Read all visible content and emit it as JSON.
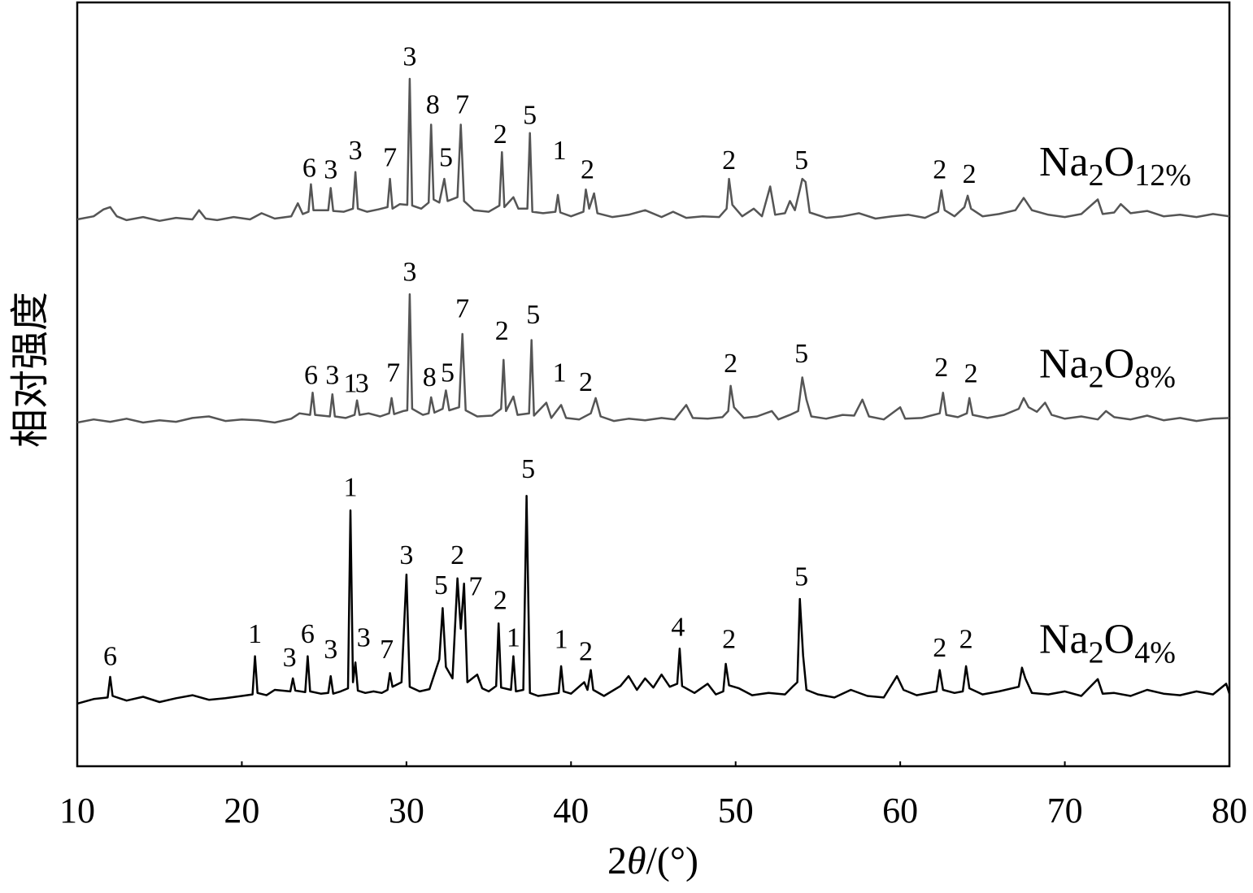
{
  "chart_data": {
    "type": "line",
    "xlabel": "2θ/(°)",
    "ylabel": "相对强度",
    "xlim": [
      10,
      80
    ],
    "xticks": [
      10,
      20,
      30,
      40,
      50,
      60,
      70,
      80
    ],
    "ylim": [
      0,
      100
    ],
    "series": [
      {
        "name": "Na2O12%",
        "color": "#555555",
        "x": [
          10,
          11,
          11.6,
          12,
          12.4,
          13,
          14,
          15,
          16,
          17,
          17.4,
          17.8,
          18.5,
          19.5,
          20.5,
          21.2,
          22,
          23,
          23.4,
          23.7,
          24.05,
          24.2,
          24.35,
          25.25,
          25.4,
          25.55,
          26.2,
          26.75,
          26.9,
          27.05,
          27.6,
          28.3,
          28.85,
          29.0,
          29.15,
          29.6,
          30.05,
          30.2,
          30.35,
          30.9,
          31.35,
          31.5,
          31.65,
          32.0,
          32.3,
          32.5,
          33.1,
          33.3,
          33.5,
          34.1,
          35.0,
          35.65,
          35.8,
          35.95,
          36.5,
          36.8,
          37.35,
          37.5,
          37.65,
          38.3,
          39.05,
          39.2,
          39.35,
          40.0,
          40.75,
          40.9,
          41.1,
          41.4,
          41.6,
          42.5,
          43.5,
          44.5,
          45.5,
          46.2,
          47,
          48,
          49,
          49.45,
          49.6,
          49.8,
          50.4,
          51.1,
          51.6,
          52.1,
          52.4,
          53.0,
          53.3,
          53.6,
          53.9,
          54.05,
          54.25,
          54.5,
          55.5,
          56.5,
          57.5,
          58.5,
          59.5,
          60.5,
          61.5,
          62.3,
          62.5,
          62.7,
          63.3,
          63.9,
          64.1,
          64.3,
          65,
          66,
          67,
          67.5,
          68,
          69,
          70,
          71,
          72,
          72.3,
          73,
          73.4,
          74,
          75,
          76,
          77,
          78,
          79,
          80
        ],
        "values": [
          71.6,
          72.0,
          72.9,
          73.2,
          72.0,
          71.5,
          71.9,
          71.4,
          71.8,
          71.6,
          72.8,
          71.7,
          71.5,
          71.9,
          71.6,
          72.4,
          71.7,
          72.0,
          73.7,
          72.3,
          72.6,
          76.2,
          72.8,
          72.8,
          75.7,
          72.7,
          72.6,
          73.0,
          77.8,
          73.0,
          72.6,
          72.9,
          73.2,
          76.9,
          73.0,
          73.6,
          73.5,
          90.0,
          73.4,
          73.0,
          73.8,
          84.0,
          74.2,
          73.8,
          76.9,
          74.0,
          74.5,
          84.0,
          74.0,
          72.8,
          72.6,
          73.4,
          80.4,
          73.2,
          74.5,
          73.0,
          73.0,
          82.9,
          72.6,
          72.4,
          72.6,
          74.8,
          72.5,
          72.0,
          72.6,
          75.5,
          73.0,
          75.0,
          72.4,
          71.9,
          72.2,
          72.8,
          71.9,
          72.6,
          71.8,
          72.0,
          71.9,
          73.0,
          76.9,
          73.5,
          72.0,
          73.0,
          72.0,
          75.9,
          72.2,
          72.4,
          74.0,
          72.8,
          75.5,
          76.9,
          76.5,
          72.5,
          71.8,
          72.0,
          72.4,
          71.7,
          72.0,
          72.2,
          71.8,
          72.6,
          75.4,
          72.8,
          72.0,
          73.2,
          74.7,
          73.0,
          72.0,
          72.3,
          72.8,
          74.4,
          72.8,
          72.2,
          71.9,
          72.3,
          74.2,
          72.3,
          72.5,
          73.6,
          72.4,
          72.7,
          72.0,
          72.2,
          71.9,
          72.3,
          72.0
        ]
      },
      {
        "name": "Na2O8%",
        "color": "#555555",
        "x": [
          10,
          11,
          12,
          13,
          14,
          15,
          16,
          17,
          18,
          19,
          20,
          21,
          22,
          23,
          23.5,
          24.15,
          24.3,
          24.45,
          25.35,
          25.5,
          25.65,
          26.3,
          26.85,
          27.0,
          27.15,
          27.7,
          28.4,
          28.95,
          29.1,
          29.25,
          29.8,
          30.05,
          30.2,
          30.35,
          31.0,
          31.35,
          31.5,
          31.7,
          32.2,
          32.4,
          32.6,
          33.2,
          33.4,
          33.6,
          34.3,
          35.2,
          35.75,
          35.9,
          36.05,
          36.5,
          36.75,
          37.45,
          37.6,
          37.75,
          38.5,
          38.8,
          39.4,
          39.7,
          40.5,
          41.2,
          41.5,
          41.8,
          42.6,
          43.5,
          44.5,
          45.5,
          46.3,
          47.0,
          47.4,
          48.3,
          49.2,
          49.55,
          49.7,
          49.9,
          50.5,
          51.3,
          52.2,
          52.6,
          53.3,
          53.8,
          54.05,
          54.3,
          54.6,
          55.5,
          56.5,
          57.2,
          57.7,
          58.1,
          59,
          60,
          60.3,
          61.3,
          62.4,
          62.6,
          62.8,
          63.5,
          64.05,
          64.2,
          64.4,
          65.3,
          66.3,
          67.2,
          67.5,
          67.8,
          68.3,
          68.8,
          69.2,
          70,
          71,
          72,
          72.5,
          73,
          74,
          75,
          76,
          77,
          78,
          79,
          80
        ],
        "values": [
          45.0,
          45.4,
          45.1,
          45.5,
          45.0,
          45.3,
          45.1,
          45.6,
          45.8,
          45.2,
          45.4,
          45.3,
          45.0,
          45.5,
          46.2,
          46.0,
          48.9,
          46.0,
          45.8,
          48.7,
          45.8,
          45.6,
          46.0,
          47.9,
          46.0,
          46.2,
          45.8,
          46.2,
          48.2,
          46.1,
          46.5,
          46.6,
          61.8,
          46.8,
          46.0,
          46.2,
          48.3,
          46.3,
          46.8,
          49.2,
          46.6,
          47.0,
          56.6,
          46.6,
          45.8,
          45.9,
          46.8,
          53.2,
          46.5,
          48.4,
          46.0,
          46.2,
          55.8,
          45.9,
          47.6,
          45.6,
          47.3,
          45.6,
          45.4,
          46.2,
          48.2,
          45.8,
          45.2,
          45.5,
          45.3,
          45.6,
          45.4,
          47.3,
          45.6,
          45.5,
          45.7,
          46.5,
          49.8,
          47.0,
          45.6,
          45.8,
          46.5,
          45.4,
          46.0,
          46.5,
          50.9,
          48.0,
          45.8,
          45.5,
          46.0,
          45.9,
          48.0,
          45.8,
          45.4,
          47.0,
          45.5,
          45.6,
          46.2,
          48.9,
          46.0,
          45.7,
          46.2,
          48.2,
          46.0,
          45.6,
          46.0,
          46.8,
          48.2,
          47.0,
          46.4,
          47.6,
          46.0,
          45.5,
          45.8,
          45.4,
          46.5,
          45.7,
          45.4,
          45.9,
          45.3,
          45.6,
          45.2,
          45.5,
          45.6
        ]
      },
      {
        "name": "Na2O4%",
        "color": "#000000",
        "x": [
          10,
          11,
          11.85,
          12.0,
          12.15,
          13,
          14,
          15,
          16,
          17,
          18,
          19,
          20,
          20.65,
          20.8,
          20.95,
          21.5,
          22,
          22.95,
          23.1,
          23.25,
          23.85,
          24.0,
          24.15,
          24.8,
          25.25,
          25.4,
          25.55,
          26.0,
          26.45,
          26.6,
          26.75,
          26.9,
          27.05,
          27.5,
          28.0,
          28.5,
          28.85,
          29.0,
          29.15,
          29.7,
          30.0,
          30.2,
          30.8,
          31.4,
          32.0,
          32.2,
          32.4,
          32.8,
          33.1,
          33.3,
          33.5,
          33.7,
          34.3,
          34.6,
          35.0,
          35.45,
          35.6,
          35.75,
          36.35,
          36.5,
          36.65,
          37.1,
          37.3,
          37.5,
          38.0,
          38.7,
          39.25,
          39.4,
          39.55,
          40.0,
          40.8,
          41.0,
          41.2,
          41.35,
          42,
          43,
          43.5,
          44,
          44.5,
          45,
          45.5,
          46,
          46.45,
          46.6,
          46.75,
          47.5,
          48.3,
          48.8,
          49.25,
          49.4,
          49.6,
          50.2,
          51,
          52,
          53,
          53.5,
          53.75,
          53.9,
          54.1,
          54.3,
          55,
          56,
          57,
          58,
          59,
          59.8,
          60.2,
          61,
          62.2,
          62.4,
          62.6,
          63.3,
          63.8,
          64.0,
          64.2,
          65,
          66,
          67.2,
          67.4,
          67.6,
          68,
          69,
          70,
          71,
          72,
          72.3,
          73,
          74,
          75,
          76,
          77,
          78,
          79,
          79.8,
          80
        ],
        "values": [
          8.2,
          8.8,
          9.0,
          11.7,
          9.2,
          8.6,
          9.1,
          8.4,
          8.9,
          9.3,
          8.7,
          8.9,
          9.2,
          9.4,
          14.4,
          9.6,
          9.3,
          10.0,
          9.8,
          11.5,
          9.9,
          9.7,
          14.4,
          9.8,
          9.5,
          9.6,
          11.8,
          9.5,
          9.8,
          10.2,
          33.5,
          11.0,
          13.6,
          9.9,
          9.6,
          9.8,
          9.6,
          10.0,
          12.2,
          10.4,
          11.0,
          25.1,
          10.4,
          9.8,
          10.1,
          14.0,
          20.7,
          13.0,
          11.5,
          24.6,
          18.0,
          23.9,
          11.0,
          12.0,
          10.2,
          9.8,
          10.5,
          18.7,
          10.3,
          10.0,
          14.4,
          9.8,
          10.0,
          35.4,
          9.6,
          9.2,
          9.4,
          9.6,
          13.1,
          9.8,
          9.5,
          11.0,
          10.0,
          12.6,
          10.0,
          9.2,
          10.5,
          11.8,
          10.0,
          11.5,
          10.3,
          12.0,
          10.4,
          10.8,
          15.4,
          10.5,
          9.6,
          10.8,
          9.4,
          9.8,
          13.4,
          10.6,
          10.2,
          9.3,
          9.6,
          9.4,
          10.5,
          11.0,
          21.9,
          14.5,
          10.0,
          9.4,
          9.0,
          10.0,
          9.2,
          9.0,
          11.8,
          10.0,
          9.3,
          9.8,
          12.6,
          10.0,
          9.6,
          9.8,
          13.1,
          10.2,
          9.4,
          9.8,
          10.4,
          12.9,
          11.5,
          9.6,
          9.4,
          9.8,
          9.2,
          11.4,
          9.5,
          9.6,
          9.2,
          10.0,
          9.5,
          9.3,
          9.8,
          9.4,
          10.8,
          9.5
        ]
      }
    ],
    "annotations": [
      {
        "text": "3",
        "x": 30.2,
        "y": 92.6
      },
      {
        "text": "8",
        "x": 31.6,
        "y": 86.3
      },
      {
        "text": "7",
        "x": 33.4,
        "y": 86.3
      },
      {
        "text": "6",
        "x": 24.1,
        "y": 78.0
      },
      {
        "text": "3",
        "x": 25.4,
        "y": 77.8
      },
      {
        "text": "3",
        "x": 26.9,
        "y": 80.3
      },
      {
        "text": "7",
        "x": 29.0,
        "y": 79.4
      },
      {
        "text": "5",
        "x": 32.4,
        "y": 79.4
      },
      {
        "text": "2",
        "x": 35.7,
        "y": 82.4
      },
      {
        "text": "5",
        "x": 37.5,
        "y": 84.9
      },
      {
        "text": "1",
        "x": 39.3,
        "y": 80.3
      },
      {
        "text": "2",
        "x": 41.0,
        "y": 77.8
      },
      {
        "text": "2",
        "x": 49.6,
        "y": 79.0
      },
      {
        "text": "5",
        "x": 54.0,
        "y": 79.0
      },
      {
        "text": "2",
        "x": 62.4,
        "y": 77.8
      },
      {
        "text": "2",
        "x": 64.2,
        "y": 77.2
      },
      {
        "text": "3",
        "x": 30.2,
        "y": 64.4
      },
      {
        "text": "7",
        "x": 33.4,
        "y": 59.6
      },
      {
        "text": "2",
        "x": 35.8,
        "y": 56.7
      },
      {
        "text": "5",
        "x": 37.7,
        "y": 58.8
      },
      {
        "text": "6",
        "x": 24.2,
        "y": 50.9
      },
      {
        "text": "3",
        "x": 25.5,
        "y": 50.9
      },
      {
        "text": "1",
        "x": 26.6,
        "y": 49.8
      },
      {
        "text": "3",
        "x": 27.3,
        "y": 49.8
      },
      {
        "text": "7",
        "x": 29.2,
        "y": 51.2
      },
      {
        "text": "8",
        "x": 31.4,
        "y": 50.6
      },
      {
        "text": "5",
        "x": 32.5,
        "y": 51.2
      },
      {
        "text": "1",
        "x": 39.3,
        "y": 51.2
      },
      {
        "text": "2",
        "x": 40.9,
        "y": 50.0
      },
      {
        "text": "2",
        "x": 49.7,
        "y": 52.4
      },
      {
        "text": "5",
        "x": 54.0,
        "y": 53.7
      },
      {
        "text": "2",
        "x": 62.5,
        "y": 51.9
      },
      {
        "text": "2",
        "x": 64.3,
        "y": 51.1
      },
      {
        "text": "6",
        "x": 12.0,
        "y": 14.1
      },
      {
        "text": "1",
        "x": 20.8,
        "y": 17.0
      },
      {
        "text": "3",
        "x": 22.9,
        "y": 13.9
      },
      {
        "text": "6",
        "x": 24.0,
        "y": 17.0
      },
      {
        "text": "3",
        "x": 25.4,
        "y": 15.0
      },
      {
        "text": "1",
        "x": 26.6,
        "y": 36.2
      },
      {
        "text": "3",
        "x": 27.4,
        "y": 16.5
      },
      {
        "text": "7",
        "x": 28.8,
        "y": 15.0
      },
      {
        "text": "3",
        "x": 30.0,
        "y": 27.3
      },
      {
        "text": "5",
        "x": 32.1,
        "y": 23.4
      },
      {
        "text": "2",
        "x": 33.1,
        "y": 27.3
      },
      {
        "text": "7",
        "x": 34.2,
        "y": 23.2
      },
      {
        "text": "2",
        "x": 35.7,
        "y": 21.4
      },
      {
        "text": "1",
        "x": 36.5,
        "y": 16.5
      },
      {
        "text": "5",
        "x": 37.4,
        "y": 38.6
      },
      {
        "text": "1",
        "x": 39.4,
        "y": 16.3
      },
      {
        "text": "2",
        "x": 40.9,
        "y": 14.7
      },
      {
        "text": "4",
        "x": 46.5,
        "y": 17.9
      },
      {
        "text": "2",
        "x": 49.6,
        "y": 16.3
      },
      {
        "text": "5",
        "x": 54.0,
        "y": 24.5
      },
      {
        "text": "2",
        "x": 62.4,
        "y": 15.2
      },
      {
        "text": "2",
        "x": 64.0,
        "y": 16.3
      }
    ]
  }
}
